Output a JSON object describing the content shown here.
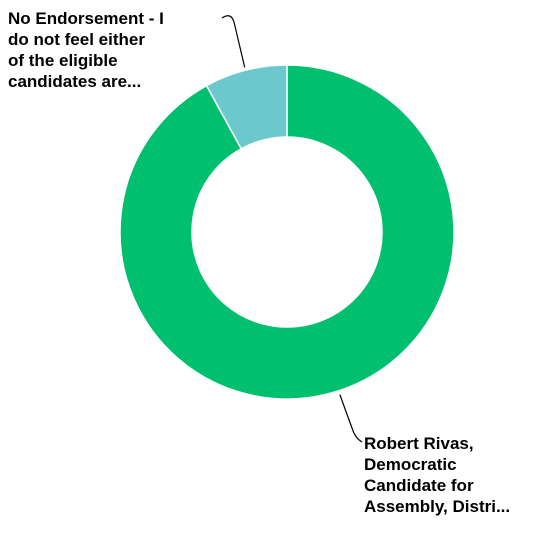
{
  "chart_data": {
    "type": "pie",
    "donut": true,
    "slices": [
      {
        "label_lines": [
          "Robert Rivas,",
          "Democratic",
          "Candidate for",
          "Assembly, Distri..."
        ],
        "value": 92,
        "color": "#00bf6f"
      },
      {
        "label_lines": [
          "No Endorsement - I",
          "do not feel either",
          "of the eligible",
          "candidates are..."
        ],
        "value": 8,
        "color": "#6bc8cd"
      }
    ],
    "legend": "none",
    "title": ""
  }
}
